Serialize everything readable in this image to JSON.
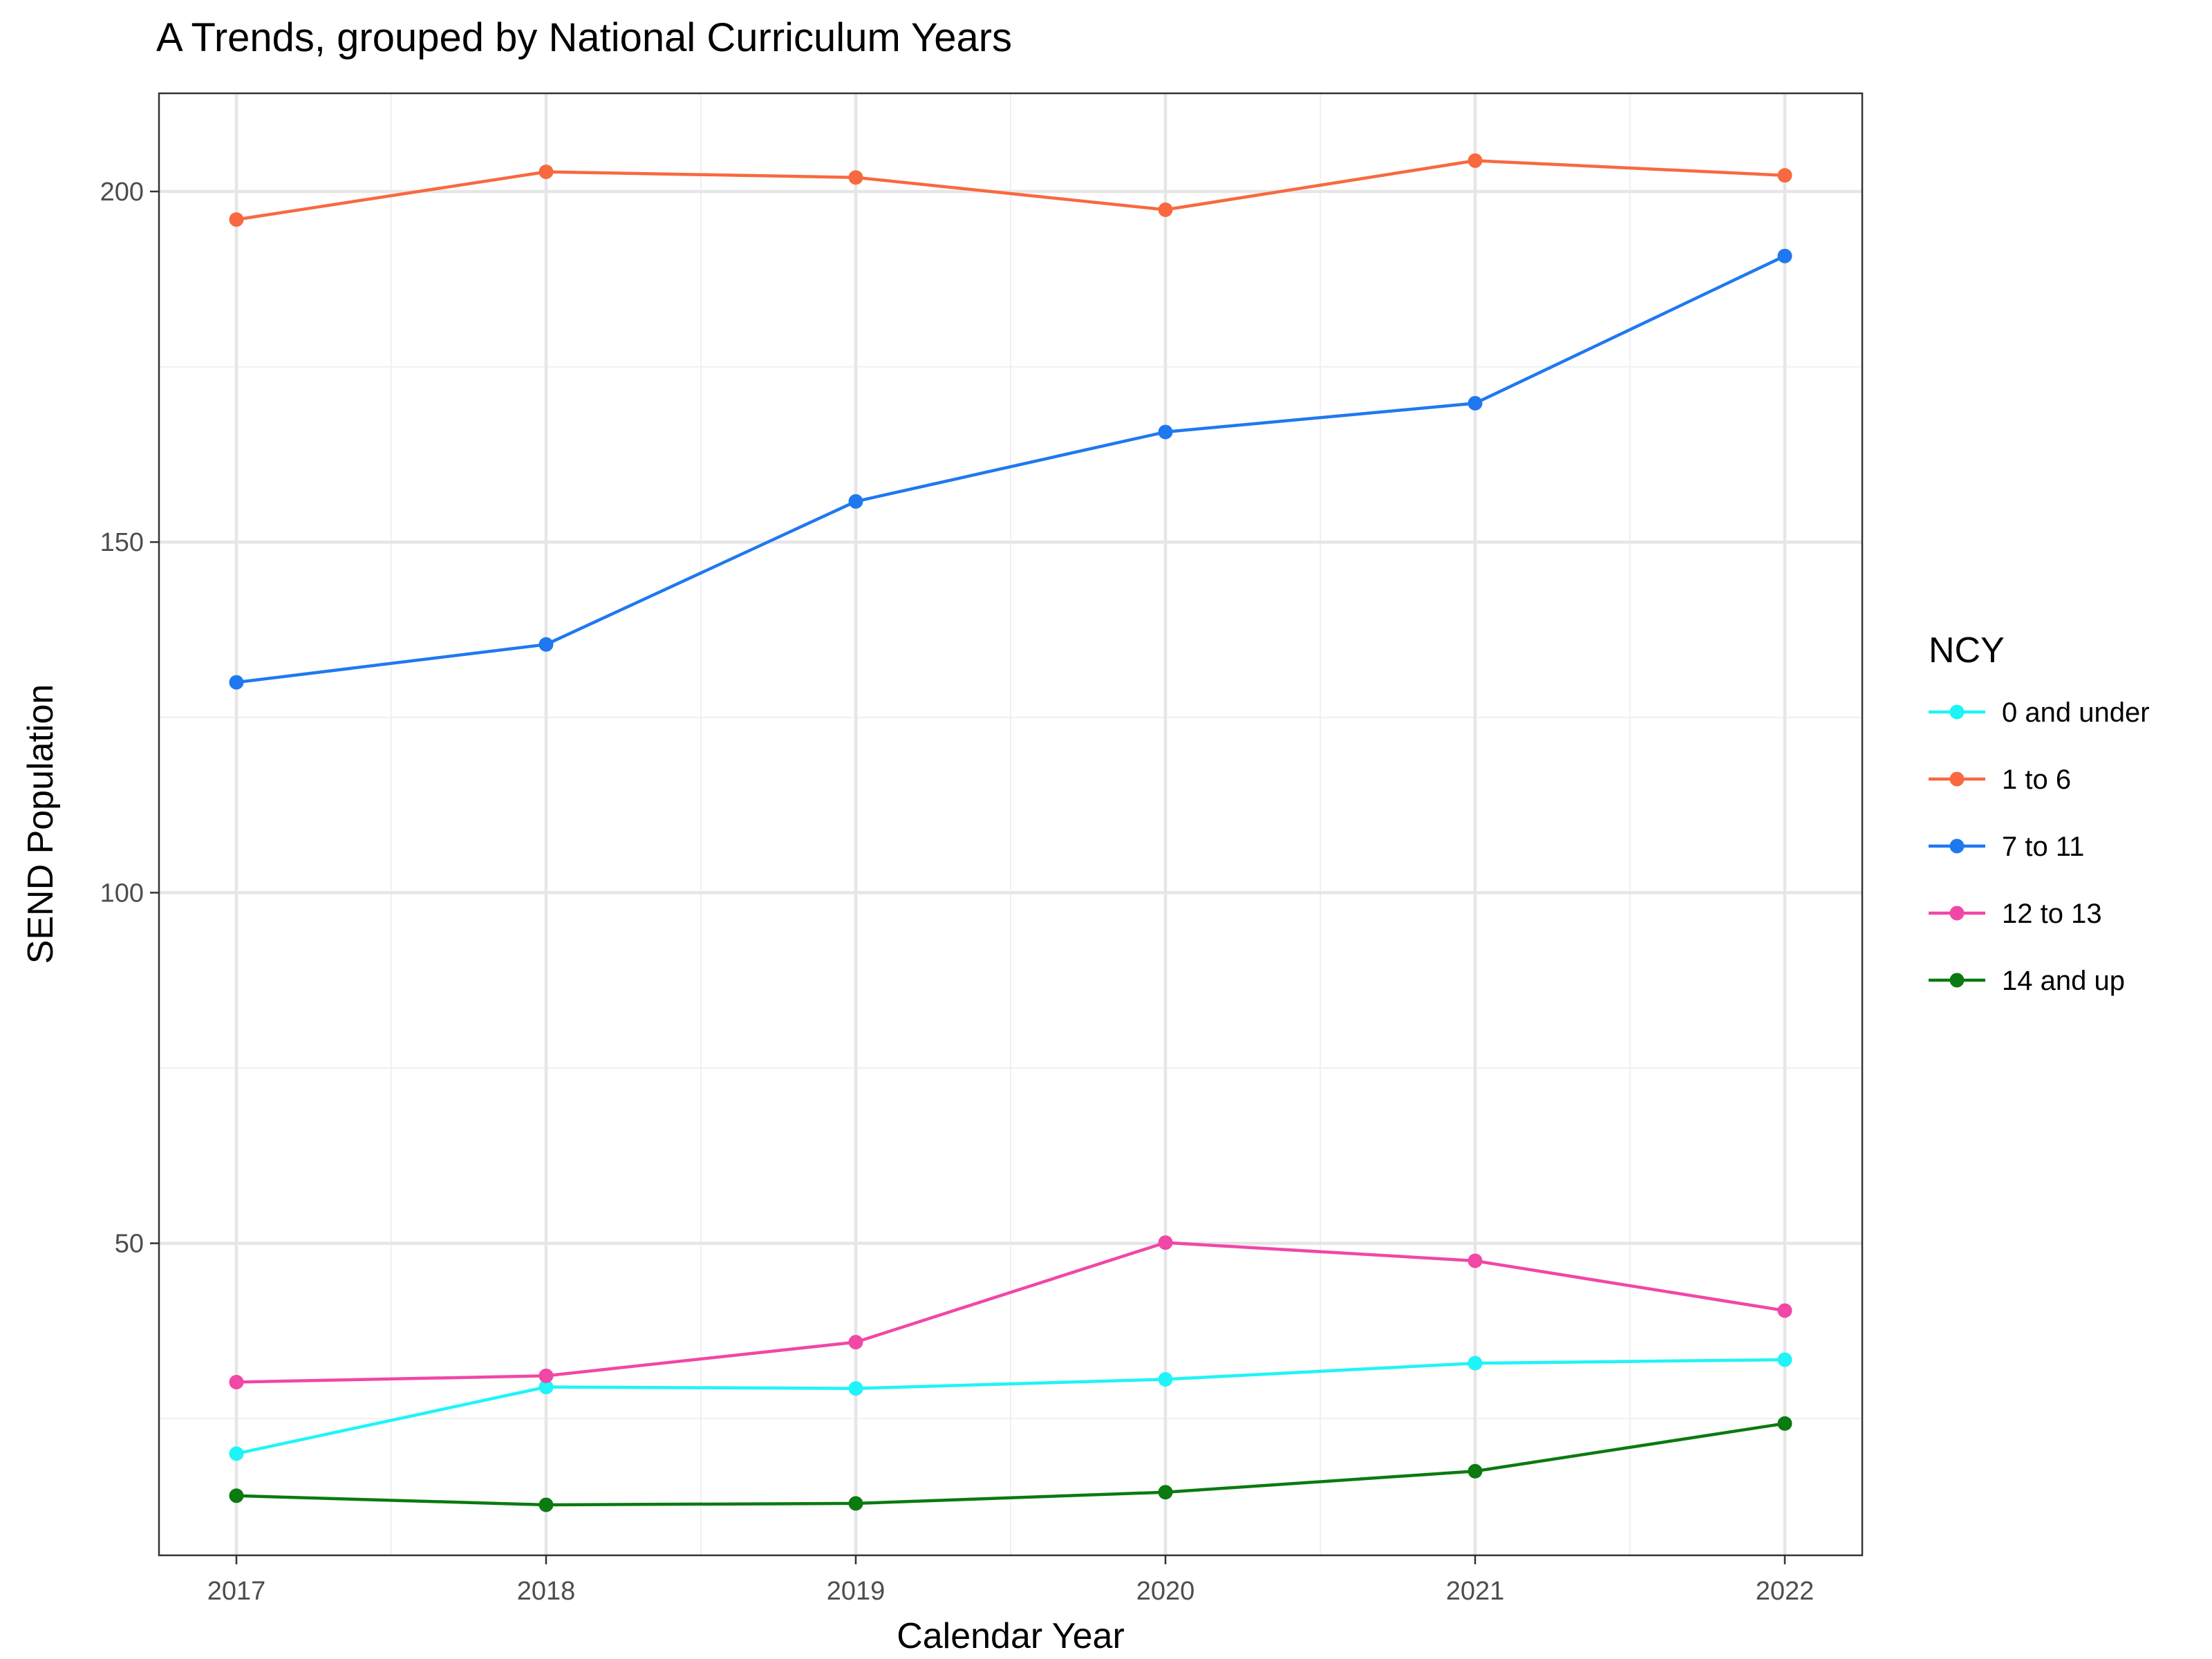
{
  "chart_data": {
    "type": "line",
    "title": "A Trends, grouped by National Curriculum Years",
    "xlabel": "Calendar Year",
    "ylabel": "SEND Population",
    "x": [
      2017,
      2018,
      2019,
      2020,
      2021,
      2022
    ],
    "x_tick_labels": [
      "2017",
      "2018",
      "2019",
      "2020",
      "2021",
      "2022"
    ],
    "y_ticks": [
      50,
      100,
      150,
      200
    ],
    "y_tick_labels": [
      "50",
      "100",
      "150",
      "200"
    ],
    "xlim": [
      2016.75,
      2022.25
    ],
    "ylim": [
      5.5,
      214
    ],
    "grid": true,
    "legend": {
      "title": "NCY",
      "position": "right"
    },
    "series": [
      {
        "name": "0 and under",
        "color": "#1FF4F8",
        "values": [
          20,
          29.5,
          29.3,
          30.6,
          32.9,
          33.4
        ]
      },
      {
        "name": "1 to 6",
        "color": "#F8693F",
        "values": [
          196,
          202.8,
          202,
          197.4,
          204.4,
          202.3
        ]
      },
      {
        "name": "7 to 11",
        "color": "#1F78F0",
        "values": [
          130,
          135.4,
          155.8,
          165.7,
          169.8,
          190.8
        ]
      },
      {
        "name": "12 to 13",
        "color": "#F147A6",
        "values": [
          30.2,
          31.1,
          35.9,
          50.1,
          47.5,
          40.4
        ]
      },
      {
        "name": "14 and up",
        "color": "#0B7A10",
        "values": [
          14,
          12.7,
          12.9,
          14.5,
          17.5,
          24.3
        ]
      }
    ]
  }
}
